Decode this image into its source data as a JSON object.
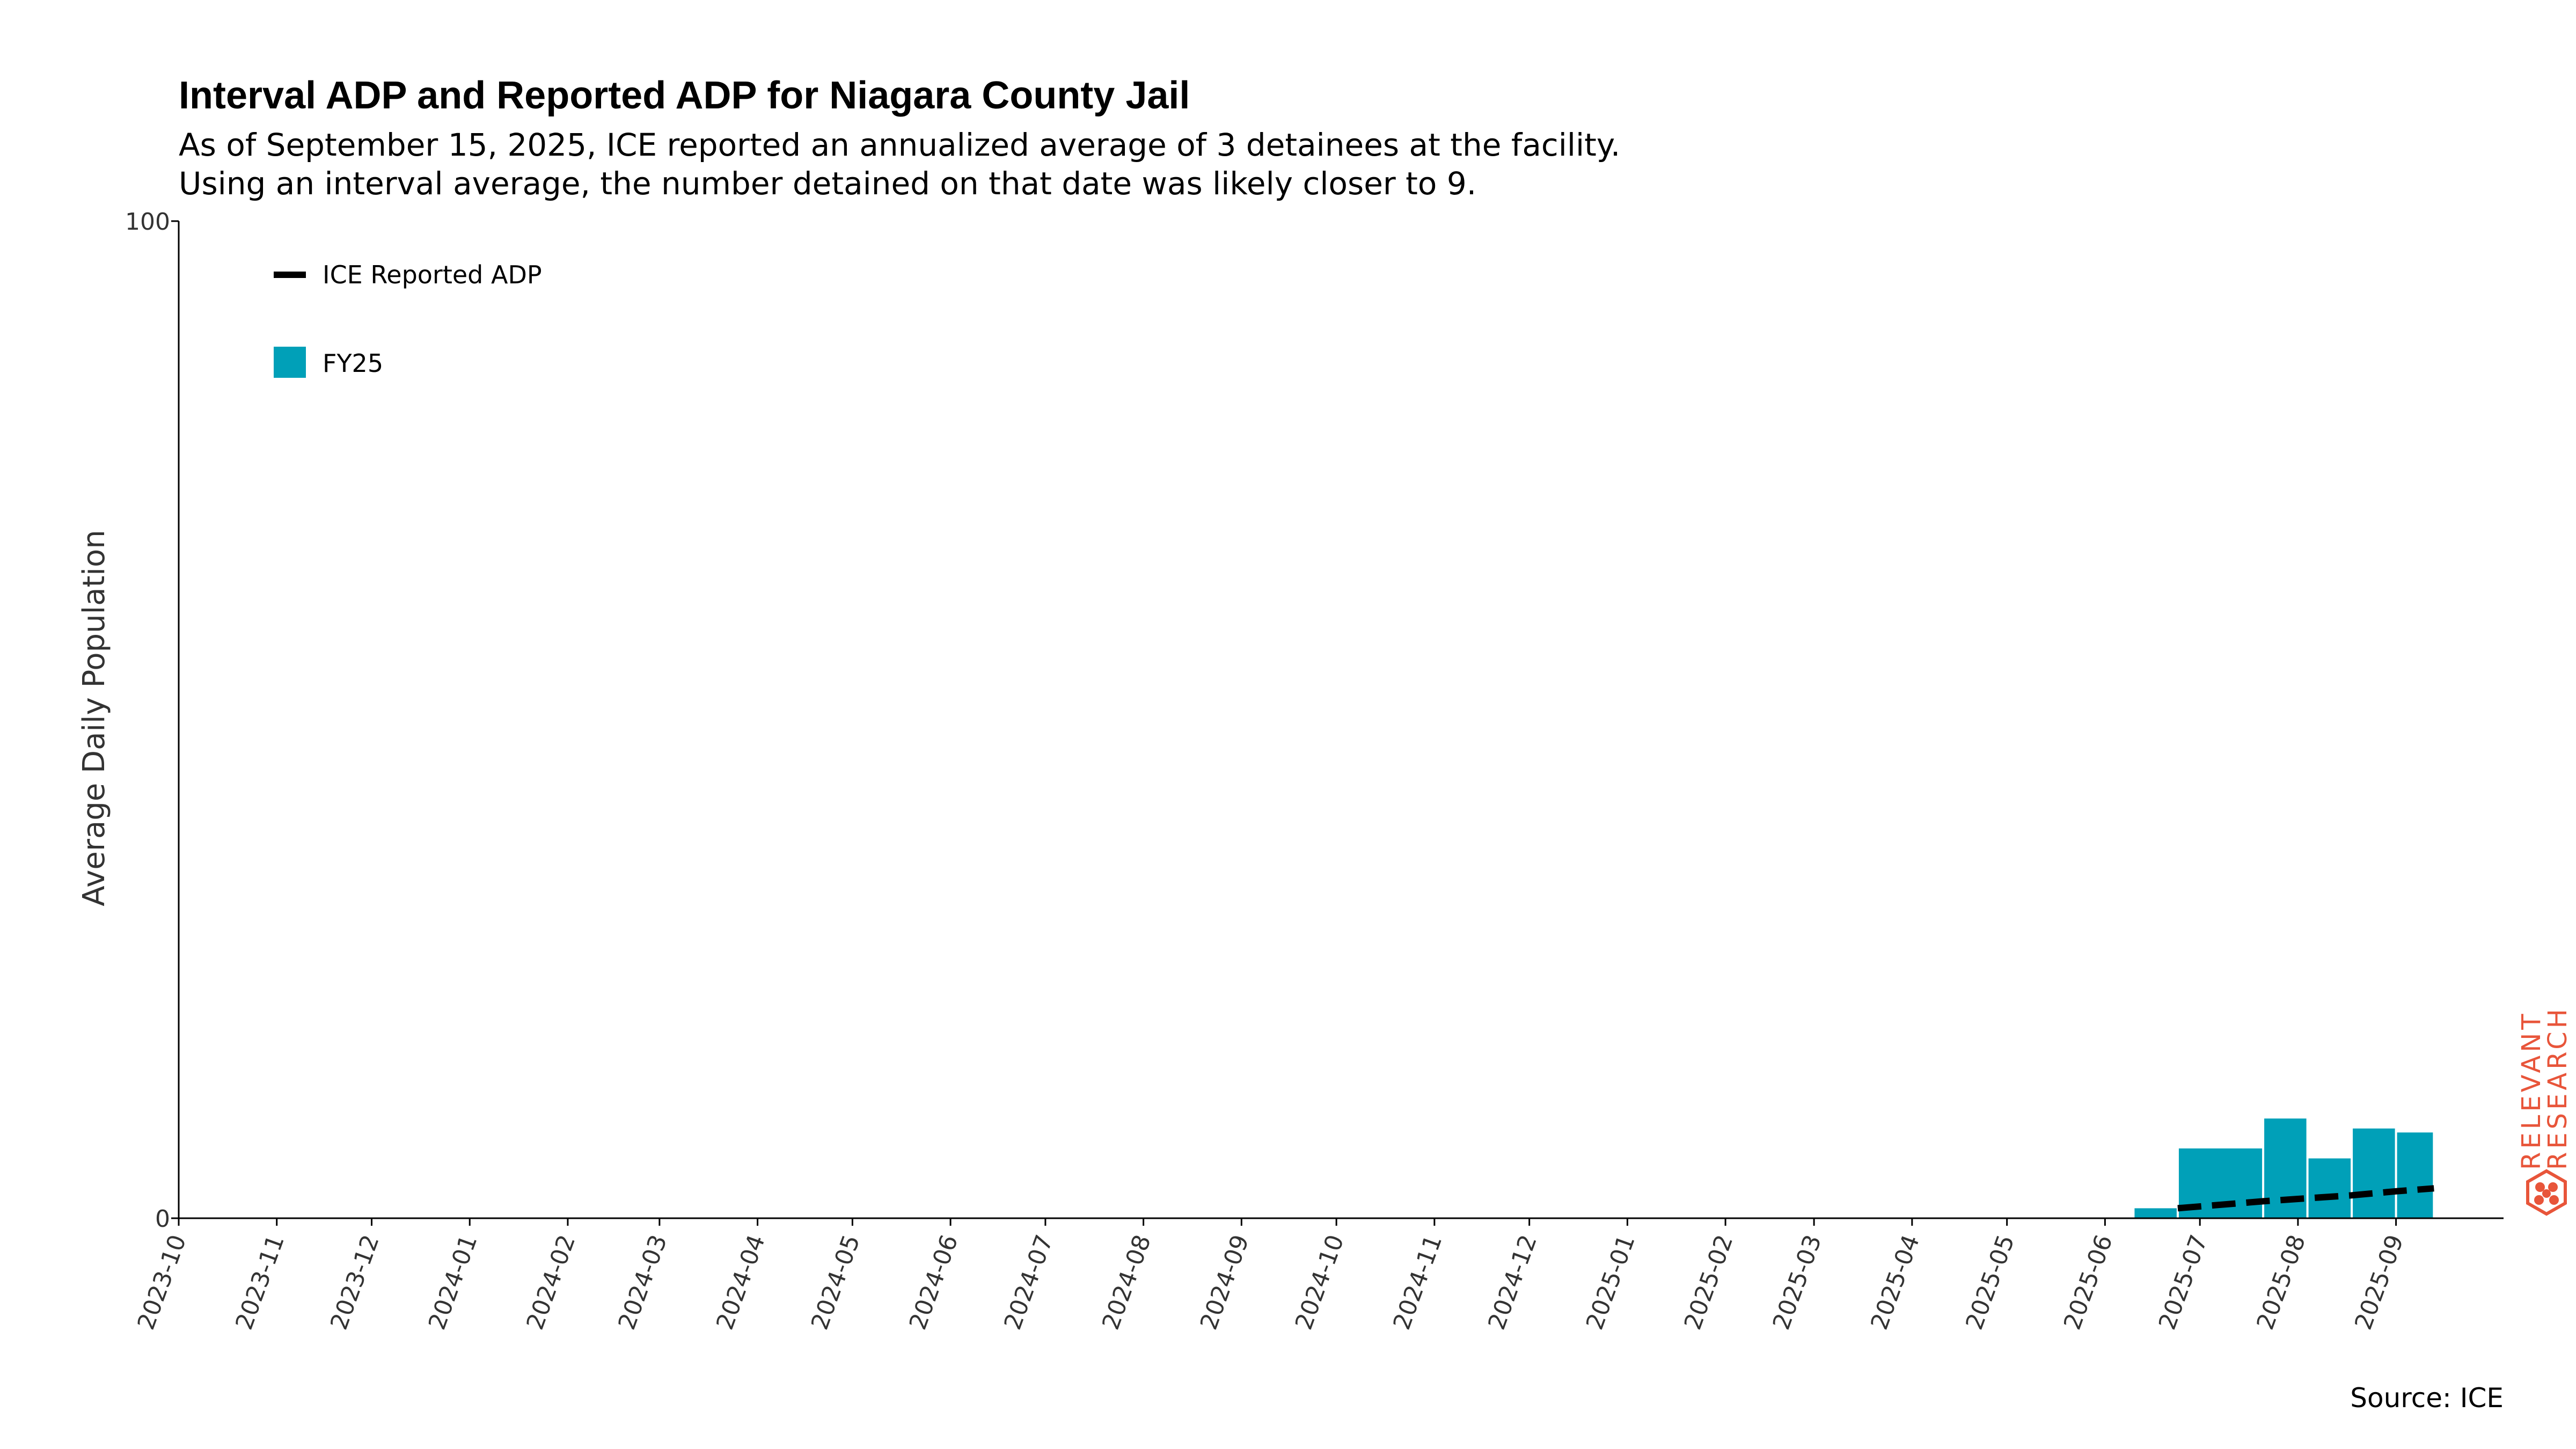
{
  "chart_data": {
    "type": "bar",
    "title": "Interval ADP and Reported ADP for Niagara County Jail",
    "subtitle_lines": [
      "As of September 15, 2025, ICE reported an annualized average of 3 detainees at the facility.",
      "Using an interval average, the number detained on that date was likely closer to 9."
    ],
    "ylabel": "Average Daily Population",
    "ylim": [
      0,
      100
    ],
    "y_ticks": [
      "0",
      "100"
    ],
    "x_ticks": [
      "2023-10",
      "2023-11",
      "2023-12",
      "2024-01",
      "2024-02",
      "2024-03",
      "2024-04",
      "2024-05",
      "2024-06",
      "2024-07",
      "2024-08",
      "2024-09",
      "2024-10",
      "2024-11",
      "2024-12",
      "2025-01",
      "2025-02",
      "2025-03",
      "2025-04",
      "2025-05",
      "2025-06",
      "2025-07",
      "2025-08",
      "2025-09"
    ],
    "x_range": [
      "2023-10-01",
      "2025-10-05"
    ],
    "bars": {
      "name": "FY25",
      "color": "#00a0b8",
      "intervals": [
        {
          "start": "2025-06-10",
          "end": "2025-06-24",
          "value": 1.0
        },
        {
          "start": "2025-06-24",
          "end": "2025-07-21",
          "value": 7.0
        },
        {
          "start": "2025-07-21",
          "end": "2025-08-04",
          "value": 10.0
        },
        {
          "start": "2025-08-04",
          "end": "2025-08-18",
          "value": 6.0
        },
        {
          "start": "2025-08-18",
          "end": "2025-09-01",
          "value": 9.0
        },
        {
          "start": "2025-09-01",
          "end": "2025-09-13",
          "value": 8.6
        }
      ]
    },
    "line": {
      "name": "ICE Reported ADP",
      "color": "#000000",
      "style": "dashed",
      "points": [
        {
          "x": "2025-06-24",
          "y": 1.0
        },
        {
          "x": "2025-07-21",
          "y": 1.7
        },
        {
          "x": "2025-08-04",
          "y": 2.0
        },
        {
          "x": "2025-08-18",
          "y": 2.3
        },
        {
          "x": "2025-09-01",
          "y": 2.7
        },
        {
          "x": "2025-09-13",
          "y": 3.0
        }
      ]
    },
    "legend": [
      {
        "label": "ICE Reported ADP",
        "kind": "line",
        "color": "#000000"
      },
      {
        "label": "FY25",
        "kind": "patch",
        "color": "#00a0b8"
      }
    ],
    "legend_position": "top-left",
    "grid": false
  },
  "source_note": "Source: ICE",
  "logo": {
    "line1": "RELEVANT",
    "line2": "RESEARCH",
    "color": "#e8553a",
    "icon": "hexagon-network-icon"
  }
}
